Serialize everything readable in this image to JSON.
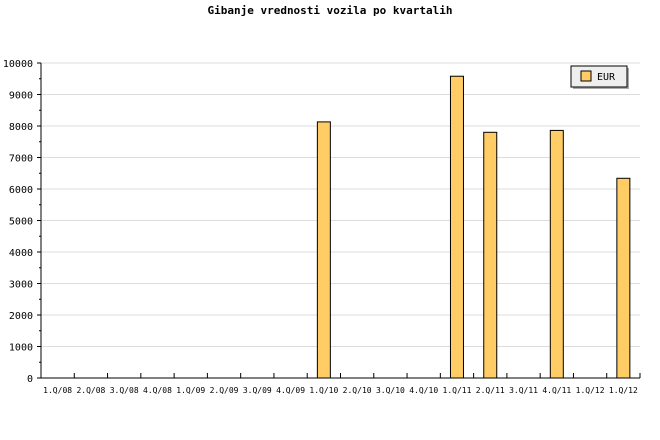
{
  "chart_data": {
    "type": "bar",
    "title": "Gibanje vrednosti vozila po kvartalih",
    "xlabel": "",
    "ylabel": "",
    "ylim": [
      0,
      10000
    ],
    "yticks": [
      0,
      1000,
      2000,
      3000,
      4000,
      5000,
      6000,
      7000,
      8000,
      9000,
      10000
    ],
    "grid": true,
    "legend_position": "top-right",
    "categories": [
      "1.Q/08",
      "2.Q/08",
      "3.Q/08",
      "4.Q/08",
      "1.Q/09",
      "2.Q/09",
      "3.Q/09",
      "4.Q/09",
      "1.Q/10",
      "2.Q/10",
      "3.Q/10",
      "4.Q/10",
      "1.Q/11",
      "2.Q/11",
      "3.Q/11",
      "4.Q/11",
      "1.Q/12",
      "1.Q/12"
    ],
    "series": [
      {
        "name": "EUR",
        "color": "#FFCC66",
        "values": [
          0,
          0,
          0,
          0,
          0,
          0,
          0,
          0,
          8130,
          0,
          0,
          0,
          9580,
          7800,
          0,
          7860,
          0,
          6340
        ]
      }
    ]
  }
}
